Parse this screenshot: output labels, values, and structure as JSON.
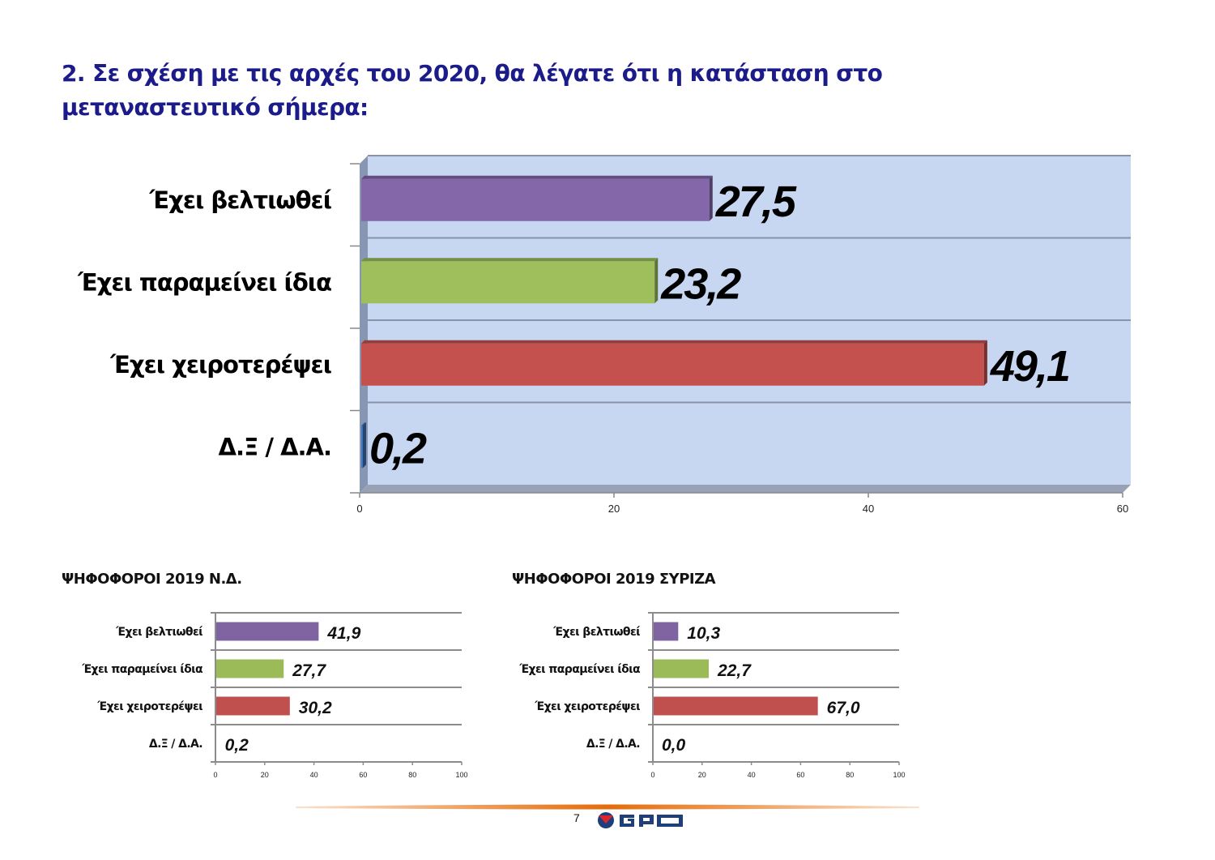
{
  "title": "2. Σε σχέση με τις αρχές του 2020, θα λέγατε ότι η κατάσταση στο μεταναστευτικό σήμερα:",
  "chart_data": [
    {
      "type": "bar",
      "orientation": "horizontal",
      "title": "",
      "categories": [
        "Έχει βελτιωθεί",
        "Έχει παραμείνει ίδια",
        "Έχει χειροτερέψει",
        "Δ.Ξ / Δ.Α."
      ],
      "values": [
        27.5,
        23.2,
        49.1,
        0.2
      ],
      "value_labels": [
        "27,5",
        "23,2",
        "49,1",
        "0,2"
      ],
      "colors": [
        "#8467a8",
        "#9fbf5c",
        "#c5514f",
        "#3f73b8"
      ],
      "xlim": [
        0,
        60
      ],
      "xticks": [
        "0",
        "20",
        "40",
        "60"
      ],
      "grid": true,
      "background": "#c7d6f1"
    },
    {
      "type": "bar",
      "orientation": "horizontal",
      "title": "ΨΗΦΟΦΟΡΟΙ 2019 Ν.Δ.",
      "categories": [
        "Έχει βελτιωθεί",
        "Έχει παραμείνει ίδια",
        "Έχει χειροτερέψει",
        "Δ.Ξ / Δ.Α."
      ],
      "values": [
        41.9,
        27.7,
        30.2,
        0.2
      ],
      "value_labels": [
        "41,9",
        "27,7",
        "30,2",
        "0,2"
      ],
      "colors": [
        "#8064a2",
        "#9bbb59",
        "#c0504d",
        "#4f81bd"
      ],
      "xlim": [
        0,
        100
      ],
      "xticks": [
        "0",
        "20",
        "40",
        "60",
        "80",
        "100"
      ],
      "grid": true
    },
    {
      "type": "bar",
      "orientation": "horizontal",
      "title": "ΨΗΦΟΦΟΡΟΙ 2019 ΣΥΡΙΖΑ",
      "categories": [
        "Έχει βελτιωθεί",
        "Έχει παραμείνει ίδια",
        "Έχει χειροτερέψει",
        "Δ.Ξ / Δ.Α."
      ],
      "values": [
        10.3,
        22.7,
        67.0,
        0.0
      ],
      "value_labels": [
        "10,3",
        "22,7",
        "67,0",
        "0,0"
      ],
      "colors": [
        "#8064a2",
        "#9bbb59",
        "#c0504d",
        "#4f81bd"
      ],
      "xlim": [
        0,
        100
      ],
      "xticks": [
        "0",
        "20",
        "40",
        "60",
        "80",
        "100"
      ],
      "grid": true
    }
  ],
  "footer": {
    "page_number": "7",
    "logo_text": "GPO",
    "line_color": "#e46c0a",
    "logo_color": "#1f3f7a",
    "logo_accent": "#d9262c"
  }
}
